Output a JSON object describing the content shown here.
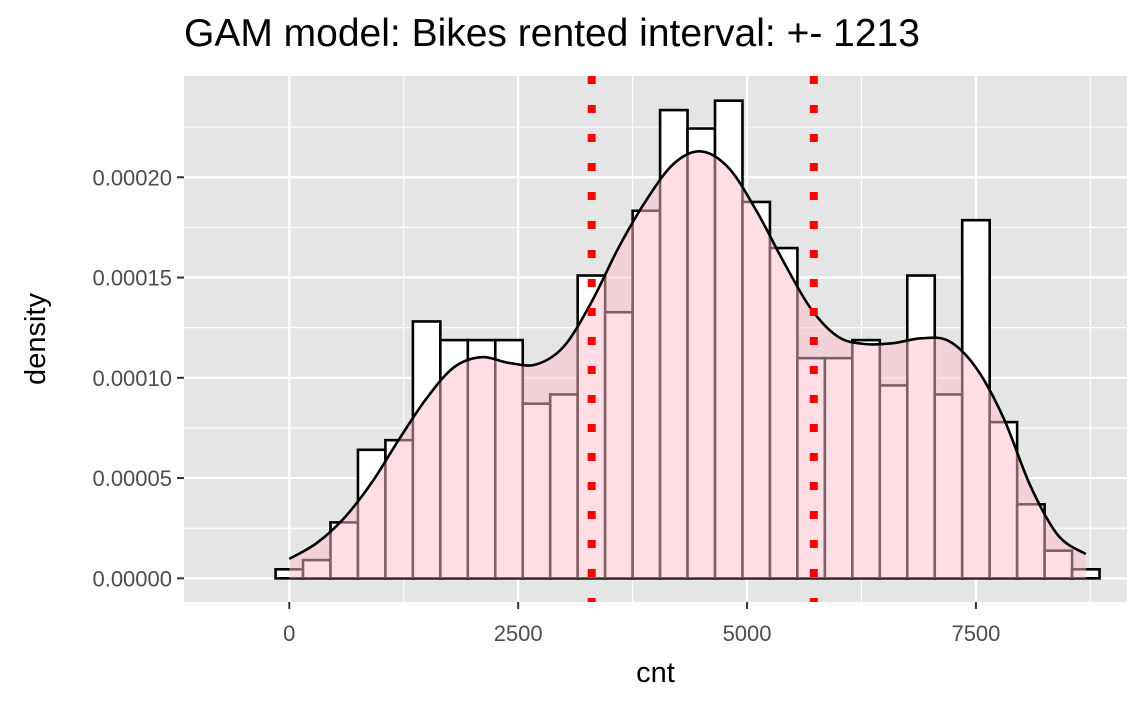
{
  "chart_data": {
    "type": "histogram",
    "title": "GAM model: Bikes rented interval: +- 1213",
    "xlabel": "cnt",
    "ylabel": "density",
    "xlim": [
      -1150,
      9150
    ],
    "ylim": [
      -1.18e-05,
      0.0002505
    ],
    "x_ticks": [
      0,
      2500,
      5000,
      7500
    ],
    "x_tick_labels": [
      "0",
      "2500",
      "5000",
      "7500"
    ],
    "y_ticks": [
      0,
      5e-05,
      0.0001,
      0.00015,
      0.0002
    ],
    "y_tick_labels": [
      "0.00000",
      "0.00005",
      "0.00010",
      "0.00015",
      "0.00020"
    ],
    "bin_width": 300,
    "bin_centers": [
      0,
      300,
      600,
      900,
      1200,
      1500,
      1800,
      2100,
      2400,
      2700,
      3000,
      3300,
      3600,
      3900,
      4200,
      4500,
      4800,
      5100,
      5400,
      5700,
      6000,
      6300,
      6600,
      6900,
      7200,
      7500,
      7800,
      8100,
      8400,
      8700
    ],
    "density": [
      4.5e-06,
      9.1e-06,
      2.79e-05,
      6.41e-05,
      6.89e-05,
      0.0001281,
      0.0001188,
      0.0001188,
      0.0001188,
      8.71e-05,
      9.17e-05,
      0.000151,
      0.0001327,
      0.0001833,
      0.0002335,
      0.0002243,
      0.0002382,
      0.0001877,
      0.0001647,
      0.0001098,
      0.0001098,
      0.0001188,
      9.62e-05,
      0.000151,
      9.17e-05,
      0.0001786,
      7.79e-05,
      3.69e-05,
      1.38e-05,
      4.5e-06
    ],
    "density_curve_x": [
      0,
      300,
      600,
      900,
      1200,
      1500,
      1800,
      2100,
      2400,
      2700,
      3000,
      3300,
      3600,
      3900,
      4200,
      4500,
      4800,
      5100,
      5400,
      5700,
      6000,
      6300,
      6600,
      6900,
      7200,
      7500,
      7800,
      8100,
      8400,
      8700
    ],
    "density_curve_y": [
      9.7e-06,
      1.76e-05,
      3.01e-05,
      4.77e-05,
      6.94e-05,
      8.98e-05,
      0.0001053,
      0.0001103,
      0.0001074,
      0.0001067,
      0.0001157,
      0.0001377,
      0.0001652,
      0.0001886,
      0.0002068,
      0.0002129,
      0.0002046,
      0.0001835,
      0.0001578,
      0.0001343,
      0.0001203,
      0.0001168,
      0.0001173,
      0.0001197,
      0.0001184,
      0.0001051,
      8.01e-05,
      4.56e-05,
      2.13e-05,
      1.21e-05
    ],
    "vlines": [
      3303,
      5729
    ],
    "colors": {
      "panel_background": "#e5e5e5",
      "grid": "#ffffff",
      "bar_outline": "#000000",
      "density_fill": "#ffc0cb",
      "density_line": "#000000",
      "vline": "#ff0000"
    }
  }
}
